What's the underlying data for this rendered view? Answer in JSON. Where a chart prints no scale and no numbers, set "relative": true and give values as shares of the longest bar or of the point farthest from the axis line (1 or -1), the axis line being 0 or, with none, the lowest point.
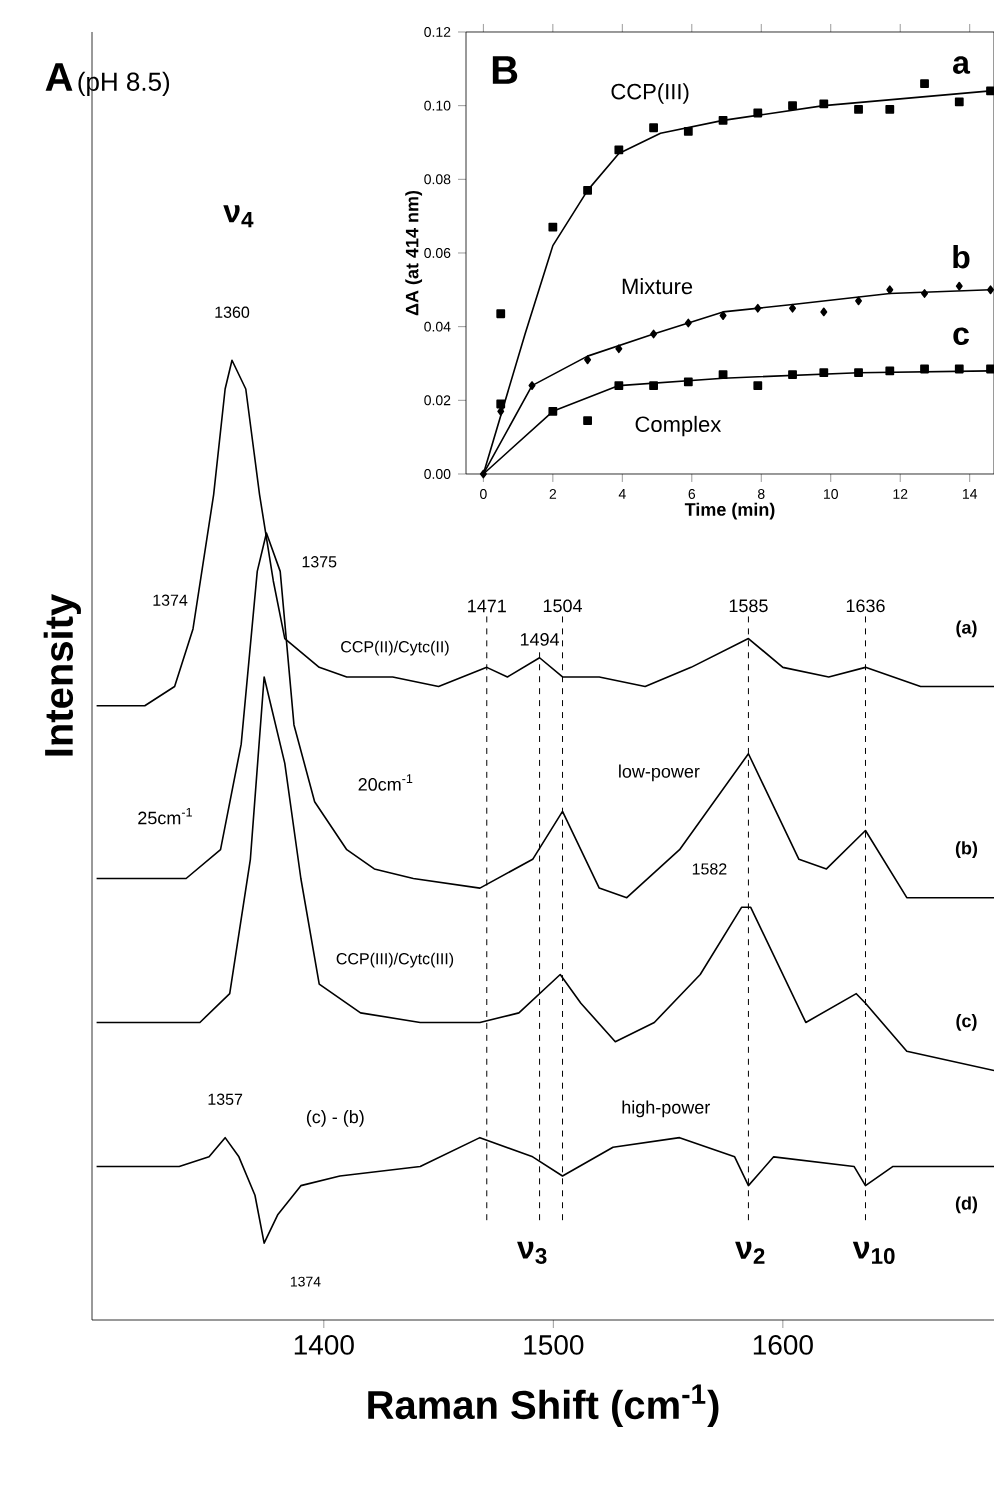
{
  "chart_data": [
    {
      "type": "line",
      "title": "A",
      "subtitle": "(pH 8.5)",
      "xlabel": "Raman Shift (cm$^{-1}$)",
      "ylabel": "Intensity",
      "relative": true,
      "xlim": [
        1299,
        1692
      ],
      "xticks": [
        1400,
        1500,
        1600
      ],
      "line_style": "solid",
      "series": [
        {
          "color": "#000000",
          "x": [
            1301,
            1322,
            1335,
            1343,
            1352,
            1357,
            1360,
            1366,
            1372,
            1378,
            1383,
            1398,
            1410,
            1430,
            1450,
            1471,
            1480,
            1494,
            1504,
            1520,
            1540,
            1560,
            1585,
            1600,
            1620,
            1636,
            1660,
            1692
          ],
          "values": [
            0.64,
            0.64,
            0.66,
            0.72,
            0.86,
            0.97,
            1.0,
            0.97,
            0.86,
            0.77,
            0.71,
            0.68,
            0.67,
            0.67,
            0.66,
            0.68,
            0.67,
            0.69,
            0.67,
            0.67,
            0.66,
            0.68,
            0.71,
            0.68,
            0.67,
            0.68,
            0.66,
            0.66
          ]
        },
        {
          "color": "#000000",
          "x": [
            1301,
            1317,
            1340,
            1355,
            1364,
            1371,
            1375,
            1381,
            1387,
            1396,
            1410,
            1422,
            1439,
            1468,
            1491,
            1504,
            1520,
            1532,
            1555,
            1585,
            1607,
            1619,
            1636,
            1654,
            1671,
            1692
          ],
          "values": [
            0.46,
            0.46,
            0.46,
            0.49,
            0.6,
            0.78,
            0.82,
            0.78,
            0.62,
            0.54,
            0.49,
            0.47,
            0.46,
            0.45,
            0.48,
            0.53,
            0.45,
            0.44,
            0.49,
            0.59,
            0.48,
            0.47,
            0.51,
            0.44,
            0.44,
            0.44
          ]
        },
        {
          "color": "#000000",
          "x": [
            1301,
            1346,
            1359,
            1368,
            1374,
            1383,
            1390,
            1398,
            1416,
            1442,
            1468,
            1485,
            1503,
            1512,
            1527,
            1544,
            1564,
            1582,
            1586,
            1610,
            1632,
            1636,
            1654,
            1692
          ],
          "values": [
            0.31,
            0.31,
            0.34,
            0.48,
            0.67,
            0.58,
            0.46,
            0.35,
            0.32,
            0.31,
            0.31,
            0.32,
            0.36,
            0.33,
            0.29,
            0.31,
            0.36,
            0.43,
            0.43,
            0.31,
            0.34,
            0.33,
            0.28,
            0.26
          ]
        },
        {
          "color": "#000000",
          "x": [
            1301,
            1337,
            1350,
            1357,
            1363,
            1370,
            1374,
            1380,
            1390,
            1407,
            1442,
            1468,
            1491,
            1504,
            1526,
            1555,
            1579,
            1585,
            1596,
            1631,
            1636,
            1648,
            1692
          ],
          "values": [
            0.16,
            0.16,
            0.17,
            0.19,
            0.17,
            0.13,
            0.08,
            0.11,
            0.14,
            0.15,
            0.16,
            0.19,
            0.17,
            0.15,
            0.18,
            0.19,
            0.17,
            0.14,
            0.17,
            0.16,
            0.14,
            0.16,
            0.16
          ]
        }
      ],
      "ref_lines": [
        {
          "axis": "x",
          "value": 1471,
          "label": "1471",
          "line_style": "dashed"
        },
        {
          "axis": "x",
          "value": 1494,
          "label": "1494",
          "line_style": "dashed"
        },
        {
          "axis": "x",
          "value": 1504,
          "label": "1504",
          "line_style": "dashed"
        },
        {
          "axis": "x",
          "value": 1585,
          "label": "1585",
          "line_style": "dashed"
        },
        {
          "axis": "x",
          "value": 1636,
          "label": "1636",
          "line_style": "dashed"
        }
      ],
      "annotations": [
        "ν$_{4}$",
        "1360",
        "1375",
        "1374",
        "CCP(II)/Cytc(II)",
        "20cm$^{-1}$",
        "25cm$^{-1}$",
        "CCP(III)/Cytc(III)",
        "low-power",
        "1582",
        "high-power",
        "1357",
        "(c) - (b)",
        "1374",
        "(a)",
        "(b)",
        "(c)",
        "(d)",
        "ν$_{3}$",
        "ν$_{2}$",
        "ν$_{10}$"
      ]
    },
    {
      "type": "scatter",
      "title": "B",
      "xlabel": "Time (min)",
      "ylabel": "ΔA (at 414 nm)",
      "xlim": [
        -0.5,
        14.7
      ],
      "ylim": [
        0,
        0.12
      ],
      "xticks": [
        0,
        2,
        4,
        6,
        8,
        10,
        12,
        14
      ],
      "yticks": [
        {
          "value": 0,
          "label": "0.00"
        },
        {
          "value": 0.02,
          "label": "0.02"
        },
        {
          "value": 0.04,
          "label": "0.04"
        },
        {
          "value": 0.06,
          "label": "0.06"
        },
        {
          "value": 0.08,
          "label": "0.08"
        },
        {
          "value": 0.1,
          "label": "0.10"
        },
        {
          "value": 0.12,
          "label": "0.12"
        }
      ],
      "series": [
        {
          "type": "line",
          "marker": "none",
          "color": "#000000",
          "x": [
            0,
            1.2,
            2,
            3,
            3.9,
            5.1,
            6.9,
            9.8,
            14.6
          ],
          "values": [
            0,
            0.038,
            0.062,
            0.077,
            0.087,
            0.0925,
            0.096,
            0.1,
            0.104
          ]
        },
        {
          "type": "line",
          "marker": "none",
          "color": "#000000",
          "x": [
            0,
            1.4,
            3,
            4.9,
            6.9,
            8.9,
            11.7,
            14.6
          ],
          "values": [
            0,
            0.024,
            0.032,
            0.038,
            0.044,
            0.046,
            0.049,
            0.05
          ]
        },
        {
          "type": "line",
          "marker": "none",
          "color": "#000000",
          "x": [
            0,
            2,
            3.9,
            6.9,
            10.8,
            14.6
          ],
          "values": [
            0,
            0.017,
            0.024,
            0.026,
            0.0275,
            0.028
          ]
        },
        {
          "type": "scatter",
          "marker": "square",
          "color": "#000000",
          "x": [
            0.5,
            2,
            3,
            3.9,
            4.9,
            5.9,
            6.9,
            7.9,
            8.9,
            9.8,
            10.8,
            11.7,
            12.7,
            13.7,
            14.6
          ],
          "values": [
            0.0435,
            0.067,
            0.077,
            0.088,
            0.094,
            0.093,
            0.096,
            0.098,
            0.1,
            0.1005,
            0.099,
            0.099,
            0.106,
            0.101,
            0.104
          ]
        },
        {
          "type": "scatter",
          "marker": "diamond",
          "color": "#000000",
          "x": [
            0,
            0.5,
            1.4,
            3,
            3.9,
            4.9,
            5.9,
            6.9,
            7.9,
            8.9,
            9.8,
            10.8,
            11.7,
            12.7,
            13.7,
            14.6
          ],
          "values": [
            0,
            0.017,
            0.024,
            0.031,
            0.034,
            0.038,
            0.041,
            0.043,
            0.045,
            0.045,
            0.044,
            0.047,
            0.05,
            0.049,
            0.051,
            0.05
          ]
        },
        {
          "type": "scatter",
          "marker": "square",
          "color": "#000000",
          "x": [
            0.5,
            2,
            3,
            3.9,
            4.9,
            5.9,
            6.9,
            7.9,
            8.9,
            9.8,
            10.8,
            11.7,
            12.7,
            13.7,
            14.6
          ],
          "values": [
            0.019,
            0.017,
            0.0145,
            0.024,
            0.024,
            0.025,
            0.027,
            0.024,
            0.027,
            0.0275,
            0.0275,
            0.028,
            0.0285,
            0.0285,
            0.0285
          ]
        }
      ],
      "annotations": [
        "CCP(III)",
        "Mixture",
        "Complex",
        "a",
        "b",
        "c"
      ]
    }
  ]
}
